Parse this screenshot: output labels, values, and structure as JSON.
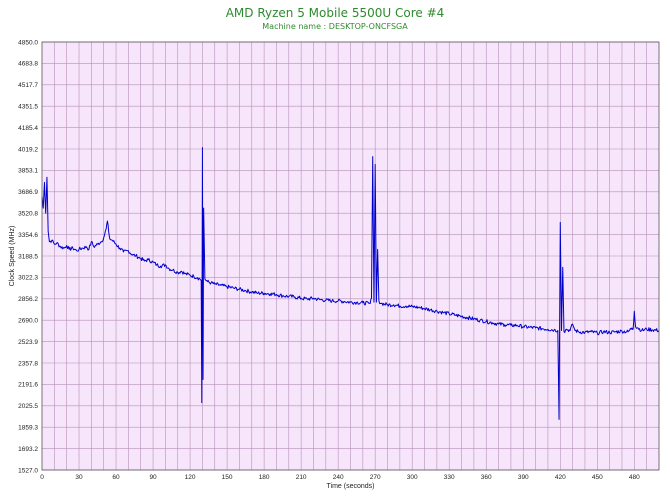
{
  "chart_data": {
    "type": "line",
    "title": "AMD Ryzen 5 Mobile 5500U Core #4",
    "subtitle": "Machine name : DESKTOP-ONCFSGA",
    "xlabel": "Time (seconds)",
    "ylabel": "Clock Speed (MHz)",
    "xlim": [
      0,
      500
    ],
    "ylim": [
      1527.0,
      4850.0
    ],
    "x_ticks": [
      "0",
      "30",
      "60",
      "90",
      "120",
      "150",
      "180",
      "210",
      "240",
      "270",
      "300",
      "330",
      "360",
      "390",
      "420",
      "450",
      "480"
    ],
    "y_ticks": [
      "1527.0",
      "1693.2",
      "1859.3",
      "2025.5",
      "2191.6",
      "2357.8",
      "2523.9",
      "2690.0",
      "2856.2",
      "3022.3",
      "3188.5",
      "3354.6",
      "3520.8",
      "3686.9",
      "3853.1",
      "4019.2",
      "4185.4",
      "4351.5",
      "4517.7",
      "4683.8",
      "4850.0"
    ],
    "grid": true,
    "colors": {
      "line": "#0000cc",
      "plot_bg": "#f7e6fb",
      "grid": "#b68fb8",
      "title": "#2e8b2e"
    },
    "series": [
      {
        "points": [
          [
            0,
            3650
          ],
          [
            1,
            3560
          ],
          [
            2,
            3760
          ],
          [
            3,
            3520
          ],
          [
            4,
            3800
          ],
          [
            5,
            3380
          ],
          [
            6,
            3300
          ],
          [
            8,
            3310
          ],
          [
            10,
            3280
          ],
          [
            12,
            3290
          ],
          [
            15,
            3260
          ],
          [
            18,
            3250
          ],
          [
            20,
            3270
          ],
          [
            22,
            3240
          ],
          [
            25,
            3250
          ],
          [
            28,
            3230
          ],
          [
            30,
            3240
          ],
          [
            33,
            3250
          ],
          [
            36,
            3260
          ],
          [
            38,
            3240
          ],
          [
            40,
            3300
          ],
          [
            42,
            3260
          ],
          [
            45,
            3280
          ],
          [
            48,
            3300
          ],
          [
            50,
            3330
          ],
          [
            52,
            3400
          ],
          [
            53,
            3460
          ],
          [
            54,
            3380
          ],
          [
            55,
            3320
          ],
          [
            57,
            3310
          ],
          [
            60,
            3280
          ],
          [
            63,
            3250
          ],
          [
            66,
            3220
          ],
          [
            70,
            3230
          ],
          [
            73,
            3200
          ],
          [
            76,
            3190
          ],
          [
            80,
            3170
          ],
          [
            83,
            3150
          ],
          [
            86,
            3160
          ],
          [
            90,
            3140
          ],
          [
            93,
            3120
          ],
          [
            96,
            3110
          ],
          [
            100,
            3120
          ],
          [
            103,
            3090
          ],
          [
            106,
            3080
          ],
          [
            110,
            3060
          ],
          [
            113,
            3070
          ],
          [
            116,
            3050
          ],
          [
            120,
            3040
          ],
          [
            123,
            3030
          ],
          [
            126,
            3020
          ],
          [
            128,
            3010
          ],
          [
            129,
            3000
          ],
          [
            129.5,
            2050
          ],
          [
            130,
            4030
          ],
          [
            130.5,
            2230
          ],
          [
            131,
            3560
          ],
          [
            132,
            3010
          ],
          [
            134,
            2990
          ],
          [
            137,
            2980
          ],
          [
            140,
            2970
          ],
          [
            145,
            2960
          ],
          [
            150,
            2950
          ],
          [
            155,
            2940
          ],
          [
            160,
            2930
          ],
          [
            165,
            2920
          ],
          [
            170,
            2910
          ],
          [
            175,
            2900
          ],
          [
            180,
            2900
          ],
          [
            185,
            2895
          ],
          [
            190,
            2890
          ],
          [
            195,
            2880
          ],
          [
            200,
            2875
          ],
          [
            205,
            2870
          ],
          [
            210,
            2860
          ],
          [
            215,
            2855
          ],
          [
            220,
            2860
          ],
          [
            225,
            2850
          ],
          [
            230,
            2845
          ],
          [
            235,
            2840
          ],
          [
            240,
            2840
          ],
          [
            245,
            2835
          ],
          [
            250,
            2830
          ],
          [
            255,
            2828
          ],
          [
            260,
            2825
          ],
          [
            265,
            2820
          ],
          [
            266,
            2820
          ],
          [
            267,
            2860
          ],
          [
            268,
            3960
          ],
          [
            269,
            2830
          ],
          [
            270,
            3900
          ],
          [
            271,
            2830
          ],
          [
            272,
            3240
          ],
          [
            273,
            2840
          ],
          [
            275,
            2820
          ],
          [
            280,
            2810
          ],
          [
            285,
            2810
          ],
          [
            290,
            2800
          ],
          [
            295,
            2800
          ],
          [
            300,
            2795
          ],
          [
            305,
            2790
          ],
          [
            310,
            2780
          ],
          [
            315,
            2770
          ],
          [
            320,
            2760
          ],
          [
            325,
            2750
          ],
          [
            330,
            2740
          ],
          [
            335,
            2730
          ],
          [
            340,
            2720
          ],
          [
            345,
            2710
          ],
          [
            350,
            2700
          ],
          [
            355,
            2690
          ],
          [
            360,
            2680
          ],
          [
            365,
            2670
          ],
          [
            370,
            2660
          ],
          [
            375,
            2655
          ],
          [
            380,
            2650
          ],
          [
            385,
            2650
          ],
          [
            390,
            2640
          ],
          [
            395,
            2635
          ],
          [
            400,
            2630
          ],
          [
            405,
            2625
          ],
          [
            410,
            2620
          ],
          [
            415,
            2615
          ],
          [
            418,
            2610
          ],
          [
            419,
            1920
          ],
          [
            420,
            3450
          ],
          [
            421,
            2610
          ],
          [
            422,
            3100
          ],
          [
            423,
            2600
          ],
          [
            425,
            2620
          ],
          [
            428,
            2610
          ],
          [
            430,
            2660
          ],
          [
            432,
            2610
          ],
          [
            435,
            2600
          ],
          [
            440,
            2595
          ],
          [
            445,
            2600
          ],
          [
            450,
            2590
          ],
          [
            455,
            2600
          ],
          [
            460,
            2595
          ],
          [
            465,
            2600
          ],
          [
            470,
            2605
          ],
          [
            475,
            2600
          ],
          [
            478,
            2630
          ],
          [
            479,
            2620
          ],
          [
            480,
            2760
          ],
          [
            481,
            2640
          ],
          [
            483,
            2630
          ],
          [
            486,
            2610
          ],
          [
            490,
            2620
          ],
          [
            495,
            2615
          ],
          [
            500,
            2610
          ]
        ]
      }
    ]
  }
}
